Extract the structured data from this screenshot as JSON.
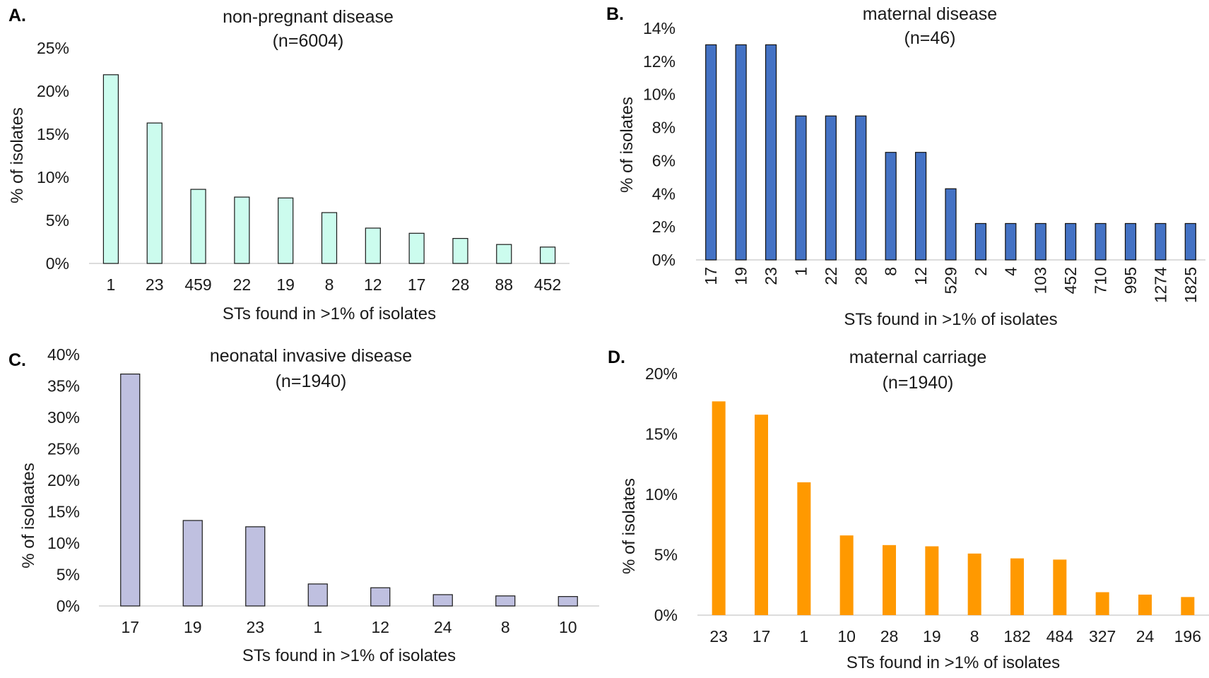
{
  "chart_data": [
    {
      "panel": "A.",
      "type": "bar",
      "title": "non-pregnant disease",
      "subtitle": "(n=6004)",
      "xlabel": "STs found in >1% of isolates",
      "ylabel": "% of isolates",
      "categories": [
        "1",
        "23",
        "459",
        "22",
        "19",
        "8",
        "12",
        "17",
        "28",
        "88",
        "452"
      ],
      "values": [
        21.9,
        16.3,
        8.6,
        7.7,
        7.6,
        5.9,
        4.1,
        3.5,
        2.9,
        2.2,
        1.9
      ],
      "ylim": [
        0,
        25
      ],
      "yticks": [
        "0%",
        "5%",
        "10%",
        "15%",
        "20%",
        "25%"
      ],
      "color": "#CCFCEE",
      "rotate_xticks": false
    },
    {
      "panel": "B.",
      "type": "bar",
      "title": "maternal disease",
      "subtitle": "(n=46)",
      "xlabel": "STs found in >1% of isolates",
      "ylabel": "% of isolates",
      "categories": [
        "17",
        "19",
        "23",
        "1",
        "22",
        "28",
        "8",
        "12",
        "529",
        "2",
        "4",
        "103",
        "452",
        "710",
        "995",
        "1274",
        "1825"
      ],
      "values": [
        13.0,
        13.0,
        13.0,
        8.7,
        8.7,
        8.7,
        6.5,
        6.5,
        4.3,
        2.2,
        2.2,
        2.2,
        2.2,
        2.2,
        2.2,
        2.2,
        2.2
      ],
      "ylim": [
        0,
        14
      ],
      "yticks": [
        "0%",
        "2%",
        "4%",
        "6%",
        "8%",
        "10%",
        "12%",
        "14%"
      ],
      "color": "#4472C4",
      "rotate_xticks": true
    },
    {
      "panel": "C.",
      "type": "bar",
      "title": "neonatal invasive disease",
      "subtitle": "(n=1940)",
      "xlabel": "STs found in >1% of isolates",
      "ylabel": "% of isolaates",
      "categories": [
        "17",
        "19",
        "23",
        "1",
        "12",
        "24",
        "8",
        "10"
      ],
      "values": [
        36.9,
        13.6,
        12.6,
        3.5,
        2.9,
        1.8,
        1.6,
        1.5
      ],
      "ylim": [
        0,
        40
      ],
      "yticks": [
        "0%",
        "5%",
        "10%",
        "15%",
        "20%",
        "25%",
        "30%",
        "35%",
        "40%"
      ],
      "color": "#BFC0E0",
      "rotate_xticks": false
    },
    {
      "panel": "D.",
      "type": "bar",
      "title": "maternal carriage",
      "subtitle": "(n=1940)",
      "xlabel": "STs found in >1% of isolates",
      "ylabel": "% of isolates",
      "categories": [
        "23",
        "17",
        "1",
        "10",
        "28",
        "19",
        "8",
        "182",
        "484",
        "327",
        "24",
        "196"
      ],
      "values": [
        17.7,
        16.6,
        11.0,
        6.6,
        5.8,
        5.7,
        5.1,
        4.7,
        4.6,
        1.9,
        1.7,
        1.5
      ],
      "ylim": [
        0,
        20
      ],
      "yticks": [
        "0%",
        "5%",
        "10%",
        "15%",
        "20%"
      ],
      "color": "#FF9900",
      "rotate_xticks": false
    }
  ]
}
